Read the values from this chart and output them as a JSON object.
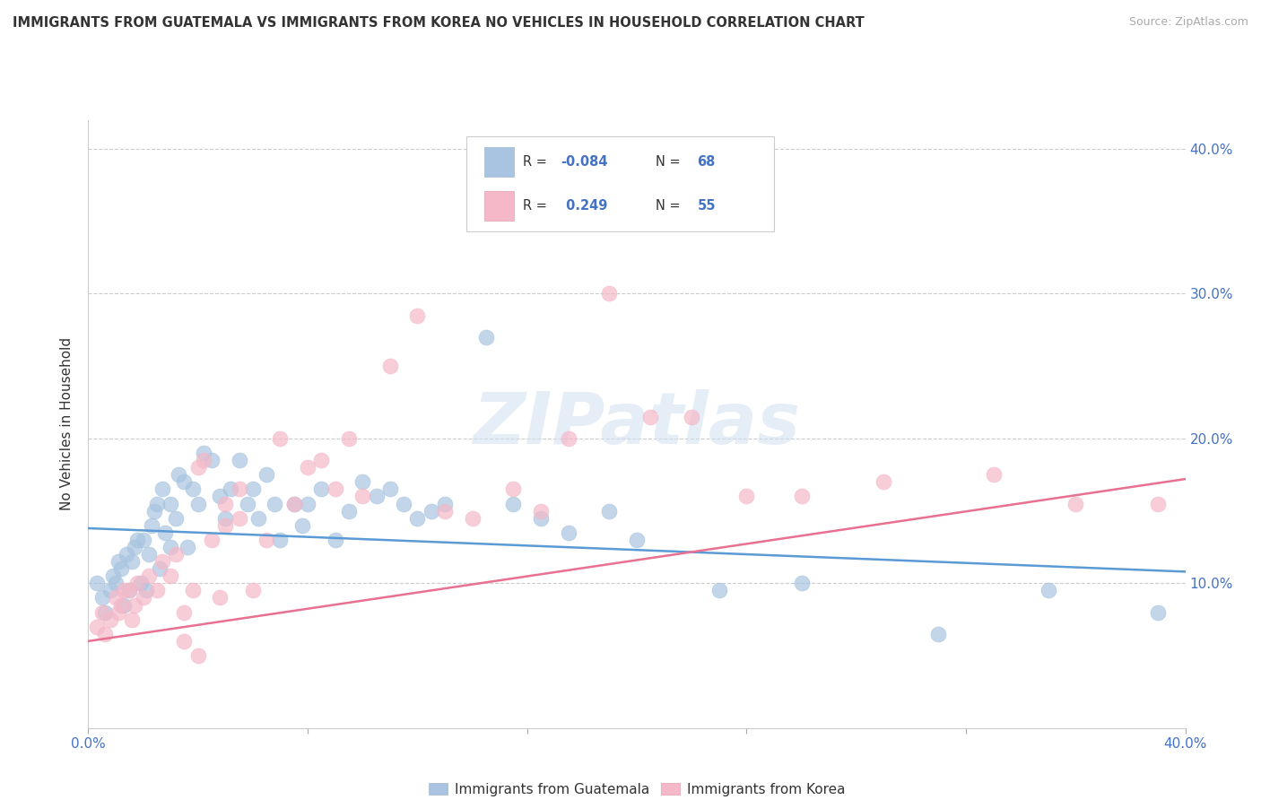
{
  "title": "IMMIGRANTS FROM GUATEMALA VS IMMIGRANTS FROM KOREA NO VEHICLES IN HOUSEHOLD CORRELATION CHART",
  "source": "Source: ZipAtlas.com",
  "ylabel": "No Vehicles in Household",
  "xlim": [
    0.0,
    0.4
  ],
  "ylim": [
    0.0,
    0.42
  ],
  "color_guatemala": "#a8c4e0",
  "color_korea": "#f4b8c8",
  "color_line_guatemala": "#5b9bd5",
  "color_line_korea": "#e87090",
  "watermark": "ZIPatlas",
  "legend_r1": "-0.084",
  "legend_n1": "68",
  "legend_r2": "0.249",
  "legend_n2": "55",
  "guatemala_x": [
    0.003,
    0.005,
    0.006,
    0.008,
    0.009,
    0.01,
    0.011,
    0.012,
    0.013,
    0.014,
    0.015,
    0.016,
    0.017,
    0.018,
    0.019,
    0.02,
    0.021,
    0.022,
    0.023,
    0.024,
    0.025,
    0.026,
    0.027,
    0.028,
    0.03,
    0.03,
    0.032,
    0.033,
    0.035,
    0.036,
    0.038,
    0.04,
    0.042,
    0.045,
    0.048,
    0.05,
    0.052,
    0.055,
    0.058,
    0.06,
    0.062,
    0.065,
    0.068,
    0.07,
    0.075,
    0.078,
    0.08,
    0.085,
    0.09,
    0.095,
    0.1,
    0.105,
    0.11,
    0.115,
    0.12,
    0.125,
    0.13,
    0.145,
    0.155,
    0.165,
    0.175,
    0.19,
    0.2,
    0.23,
    0.26,
    0.31,
    0.35,
    0.39
  ],
  "guatemala_y": [
    0.1,
    0.09,
    0.08,
    0.095,
    0.105,
    0.1,
    0.115,
    0.11,
    0.085,
    0.12,
    0.095,
    0.115,
    0.125,
    0.13,
    0.1,
    0.13,
    0.095,
    0.12,
    0.14,
    0.15,
    0.155,
    0.11,
    0.165,
    0.135,
    0.125,
    0.155,
    0.145,
    0.175,
    0.17,
    0.125,
    0.165,
    0.155,
    0.19,
    0.185,
    0.16,
    0.145,
    0.165,
    0.185,
    0.155,
    0.165,
    0.145,
    0.175,
    0.155,
    0.13,
    0.155,
    0.14,
    0.155,
    0.165,
    0.13,
    0.15,
    0.17,
    0.16,
    0.165,
    0.155,
    0.145,
    0.15,
    0.155,
    0.27,
    0.155,
    0.145,
    0.135,
    0.15,
    0.13,
    0.095,
    0.1,
    0.065,
    0.095,
    0.08
  ],
  "korea_x": [
    0.003,
    0.005,
    0.006,
    0.008,
    0.01,
    0.011,
    0.012,
    0.013,
    0.015,
    0.016,
    0.017,
    0.018,
    0.02,
    0.022,
    0.025,
    0.027,
    0.03,
    0.032,
    0.035,
    0.038,
    0.04,
    0.042,
    0.045,
    0.048,
    0.05,
    0.055,
    0.06,
    0.065,
    0.07,
    0.075,
    0.08,
    0.085,
    0.09,
    0.095,
    0.1,
    0.11,
    0.12,
    0.13,
    0.14,
    0.155,
    0.165,
    0.175,
    0.19,
    0.205,
    0.22,
    0.24,
    0.26,
    0.29,
    0.33,
    0.36,
    0.39,
    0.05,
    0.055,
    0.035,
    0.04
  ],
  "korea_y": [
    0.07,
    0.08,
    0.065,
    0.075,
    0.09,
    0.08,
    0.085,
    0.095,
    0.095,
    0.075,
    0.085,
    0.1,
    0.09,
    0.105,
    0.095,
    0.115,
    0.105,
    0.12,
    0.08,
    0.095,
    0.18,
    0.185,
    0.13,
    0.09,
    0.14,
    0.165,
    0.095,
    0.13,
    0.2,
    0.155,
    0.18,
    0.185,
    0.165,
    0.2,
    0.16,
    0.25,
    0.285,
    0.15,
    0.145,
    0.165,
    0.15,
    0.2,
    0.3,
    0.215,
    0.215,
    0.16,
    0.16,
    0.17,
    0.175,
    0.155,
    0.155,
    0.155,
    0.145,
    0.06,
    0.05
  ],
  "trend_guatemala": [
    0.0,
    0.4,
    0.138,
    0.108
  ],
  "trend_korea": [
    0.0,
    0.4,
    0.06,
    0.172
  ]
}
